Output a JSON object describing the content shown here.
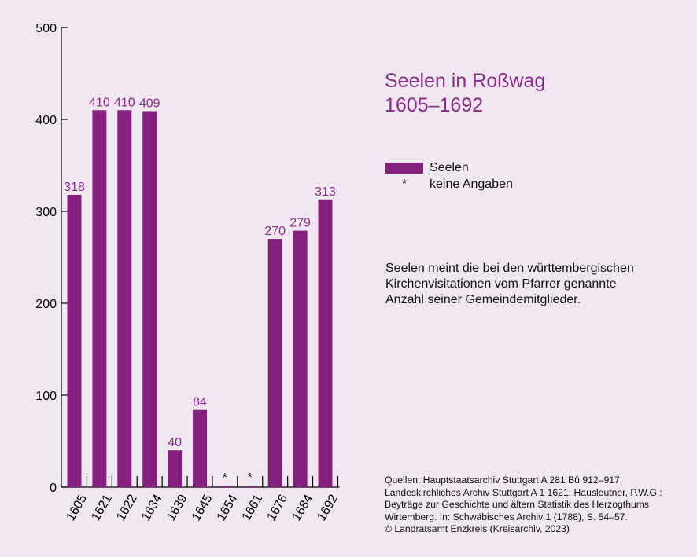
{
  "chart_data": {
    "type": "bar",
    "categories": [
      "1605",
      "1621",
      "1622",
      "1634",
      "1639",
      "1645",
      "1654",
      "1661",
      "1676",
      "1684",
      "1692"
    ],
    "values": [
      318,
      410,
      410,
      409,
      40,
      84,
      null,
      null,
      270,
      279,
      313
    ],
    "value_labels": [
      "318",
      "410",
      "410",
      "409",
      "40",
      "84",
      "*",
      "*",
      "270",
      "279",
      "313"
    ],
    "ylim": [
      0,
      500
    ],
    "yticks": [
      0,
      100,
      200,
      300,
      400,
      500
    ],
    "grid": false,
    "bar_color": "#85207f",
    "label_color": "#8a2b8a",
    "legend_position": "right"
  },
  "title": {
    "line1": "Seelen in Roßwag",
    "line2": "1605–1692"
  },
  "legend": {
    "bar_label": "Seelen",
    "star_symbol": "*",
    "star_label": "keine Angaben"
  },
  "note": {
    "line1": "Seelen meint die bei den württembergischen",
    "line2": "Kirchenvisitationen vom Pfarrer genannte",
    "line3": "Anzahl seiner Gemeindemitglieder."
  },
  "sources": {
    "line1": "Quellen: Hauptstaatsarchiv Stuttgart A 281 Bü 912–917;",
    "line2": "Landeskirchliches Archiv Stuttgart A 1 1621; Hausleutner, P.W.G.:",
    "line3": "Beyträge zur Geschichte und ältern Statistik des Herzogthums",
    "line4": "Wirtemberg. In: Schwäbisches Archiv 1 (1788), S. 54–57.",
    "line5": "© Landratsamt Enzkreis (Kreisarchiv, 2023)"
  }
}
